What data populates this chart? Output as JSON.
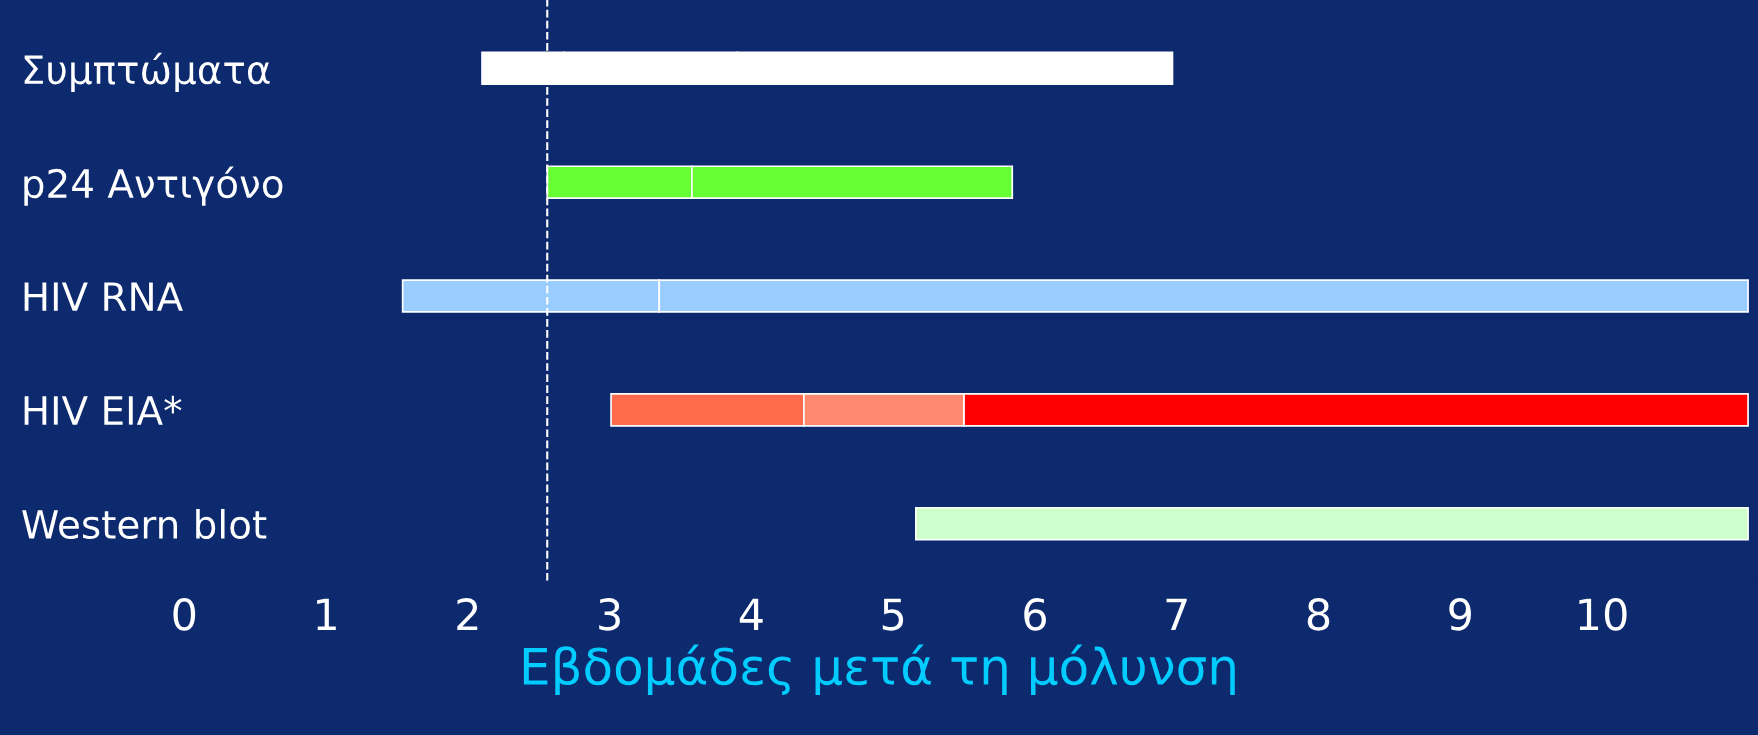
{
  "chart_data": {
    "type": "bar",
    "orientation": "horizontal",
    "xlabel": "Εβδομάδες μετά τη μόλυνση",
    "categories": [
      "Συμπτώματα",
      "p24 Αντιγόνο",
      "HIV RNA",
      "HIV EIA*",
      "Western blot"
    ],
    "series": [
      {
        "colors": [
          "#ffffff",
          "#66ff33",
          "#99ccff",
          "#ff6a4d",
          "#ccffcc"
        ],
        "values": [
          0.58,
          1.02,
          1.81,
          1.36,
          5.87
        ],
        "base": [
          2.1,
          2.56,
          1.54,
          3.01,
          5.16
        ]
      },
      {
        "colors": [
          "#ffffff",
          "#66ff33",
          "#99ccff",
          "#ff8a70",
          null
        ],
        "values": [
          1.22,
          2.26,
          7.68,
          1.13,
          null
        ],
        "base": [
          2.68,
          3.58,
          3.35,
          4.37,
          null
        ]
      },
      {
        "colors": [
          "#ffffff",
          null,
          null,
          "#ff0000",
          null
        ],
        "values": [
          3.07,
          null,
          null,
          5.53,
          null
        ],
        "base": [
          3.9,
          null,
          null,
          5.5,
          null
        ]
      }
    ],
    "xlim": [
      -1.3,
      11.1
    ],
    "xticks": [
      0,
      1,
      2,
      3,
      4,
      5,
      6,
      7,
      8,
      9,
      10
    ],
    "ref_lines": [
      {
        "axis": "x",
        "value": 2.56,
        "color": "#ffffff",
        "line_style": "dashed"
      }
    ],
    "grid": false,
    "legend": false
  }
}
